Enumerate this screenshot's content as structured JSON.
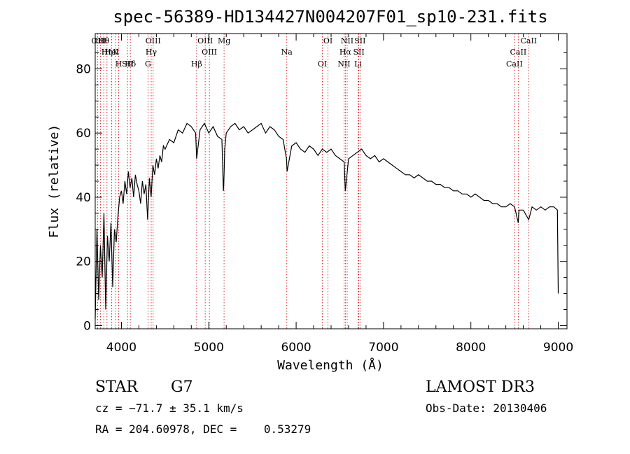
{
  "chart_data": {
    "type": "line",
    "title": "spec-56389-HD134427N004207F01_sp10-231.fits",
    "xlabel": "Wavelength (Å)",
    "ylabel": "Flux (relative)",
    "xlim": [
      3700,
      9100
    ],
    "ylim": [
      -1,
      91
    ],
    "xticks": [
      4000,
      5000,
      6000,
      7000,
      8000,
      9000
    ],
    "yticks": [
      0,
      20,
      40,
      60,
      80
    ],
    "series": [
      {
        "name": "flux",
        "x": [
          3700,
          3720,
          3740,
          3760,
          3780,
          3800,
          3820,
          3840,
          3860,
          3880,
          3900,
          3920,
          3940,
          3960,
          3980,
          4000,
          4020,
          4040,
          4060,
          4080,
          4100,
          4120,
          4140,
          4160,
          4180,
          4200,
          4220,
          4240,
          4260,
          4280,
          4300,
          4320,
          4340,
          4360,
          4380,
          4400,
          4420,
          4440,
          4460,
          4480,
          4500,
          4550,
          4600,
          4650,
          4700,
          4750,
          4800,
          4850,
          4861,
          4900,
          4950,
          5000,
          5050,
          5100,
          5150,
          5167,
          5172,
          5183,
          5200,
          5250,
          5300,
          5350,
          5400,
          5450,
          5500,
          5550,
          5600,
          5650,
          5700,
          5750,
          5800,
          5850,
          5890,
          5896,
          5950,
          6000,
          6050,
          6100,
          6150,
          6200,
          6250,
          6300,
          6350,
          6400,
          6450,
          6500,
          6550,
          6563,
          6600,
          6650,
          6700,
          6750,
          6800,
          6850,
          6900,
          6950,
          7000,
          7050,
          7100,
          7150,
          7200,
          7250,
          7300,
          7350,
          7400,
          7450,
          7500,
          7550,
          7600,
          7650,
          7700,
          7750,
          7800,
          7850,
          7900,
          7950,
          8000,
          8050,
          8100,
          8150,
          8200,
          8250,
          8300,
          8350,
          8400,
          8450,
          8500,
          8542,
          8550,
          8600,
          8662,
          8700,
          8750,
          8800,
          8850,
          8900,
          8950,
          8990,
          9000
        ],
        "y": [
          2,
          30,
          8,
          25,
          15,
          35,
          5,
          28,
          20,
          32,
          12,
          30,
          26,
          34,
          40,
          42,
          38,
          45,
          41,
          48,
          43,
          46,
          40,
          47,
          44,
          42,
          38,
          45,
          41,
          44,
          33,
          46,
          40,
          50,
          47,
          52,
          49,
          53,
          51,
          56,
          55,
          58,
          57,
          61,
          60,
          63,
          62,
          60,
          52,
          61,
          63,
          60,
          62,
          59,
          58,
          42,
          44,
          55,
          60,
          62,
          63,
          61,
          62,
          60,
          61,
          62,
          63,
          60,
          62,
          61,
          59,
          58,
          52,
          48,
          56,
          57,
          55,
          54,
          56,
          55,
          53,
          55,
          54,
          55,
          53,
          52,
          51,
          42,
          52,
          53,
          54,
          55,
          53,
          52,
          53,
          51,
          52,
          51,
          50,
          49,
          48,
          47,
          47,
          46,
          47,
          46,
          45,
          45,
          44,
          44,
          43,
          43,
          42,
          42,
          41,
          41,
          40,
          41,
          40,
          39,
          39,
          38,
          38,
          37,
          37,
          38,
          37,
          32,
          36,
          36,
          33,
          37,
          36,
          37,
          36,
          37,
          37,
          36,
          10
        ]
      }
    ],
    "lines": [
      {
        "label": "Hθ",
        "x": 3798
      },
      {
        "label": "K",
        "x": 3934
      },
      {
        "label": "Hδ",
        "x": 4102
      },
      {
        "label": "OII",
        "x": 3727
      },
      {
        "label": "Hη",
        "x": 3835
      },
      {
        "label": "H",
        "x": 3969
      },
      {
        "label": "CII",
        "x": 3760
      },
      {
        "label": "HeI",
        "x": 3889
      },
      {
        "label": "SII",
        "x": 4070
      },
      {
        "label": "OIII",
        "x": 4363
      },
      {
        "label": "Hγ",
        "x": 4341
      },
      {
        "label": "G",
        "x": 4304
      },
      {
        "label": "OIII",
        "x": 4959
      },
      {
        "label": "OIII",
        "x": 5007
      },
      {
        "label": "Hβ",
        "x": 4861
      },
      {
        "label": "Mg",
        "x": 5175
      },
      {
        "label": "Na",
        "x": 5893
      },
      {
        "label": "OI",
        "x": 6300
      },
      {
        "label": "OI",
        "x": 6364
      },
      {
        "label": "Hα",
        "x": 6563
      },
      {
        "label": "NII",
        "x": 6548
      },
      {
        "label": "NII",
        "x": 6584
      },
      {
        "label": "SII",
        "x": 6717
      },
      {
        "label": "Li",
        "x": 6708
      },
      {
        "label": "SII",
        "x": 6731
      },
      {
        "label": "CaII",
        "x": 8542
      },
      {
        "label": "CaII",
        "x": 8498
      },
      {
        "label": "CaII",
        "x": 8662
      }
    ],
    "colors": {
      "line": "#000000",
      "marker": "#cc0000"
    }
  },
  "info": {
    "class_label": "STAR",
    "subclass": "G7",
    "survey": "LAMOST DR3",
    "redshift": "cz = −71.7 ± 35.1 km/s",
    "obs_date": "Obs-Date: 20130406",
    "coords": "RA = 204.60978, DEC =    0.53279"
  }
}
